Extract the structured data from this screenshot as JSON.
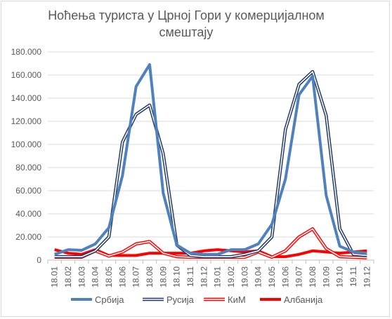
{
  "chart_data": {
    "type": "line",
    "title": "Ноћења туриста у Црној Гори у комерцијалном смештају",
    "xlabel": "",
    "ylabel": "",
    "ylim": [
      0,
      180000
    ],
    "yticks": [
      0,
      20000,
      40000,
      60000,
      80000,
      100000,
      120000,
      140000,
      160000,
      180000
    ],
    "ytick_labels": [
      "0",
      "20.000",
      "40.000",
      "60.000",
      "80.000",
      "100.000",
      "120.000",
      "140.000",
      "160.000",
      "180.000"
    ],
    "grid": true,
    "legend_position": "bottom",
    "categories": [
      "18.01",
      "18.02",
      "18.03",
      "18.04",
      "18.05",
      "18.06",
      "18.07",
      "18.08",
      "18.09",
      "18.10",
      "18.11",
      "18.12",
      "19.01",
      "19.02",
      "19.03",
      "19.04",
      "19.05",
      "19.06",
      "19.07",
      "19.08",
      "19.09",
      "19.10",
      "19.11",
      "19.12"
    ],
    "series": [
      {
        "name": "Србија",
        "color": "#4f81bd",
        "style": "solid-thick",
        "values": [
          5000,
          9000,
          8500,
          14000,
          28000,
          73000,
          150000,
          169000,
          58000,
          13000,
          6000,
          5000,
          5000,
          9000,
          9000,
          14000,
          31000,
          70000,
          143000,
          159000,
          56000,
          12000,
          7000,
          6000
        ]
      },
      {
        "name": "Русија",
        "color": "#1f3864",
        "style": "double",
        "values": [
          3000,
          3000,
          3000,
          8000,
          20000,
          102000,
          126000,
          134000,
          92000,
          13000,
          4000,
          3000,
          3000,
          3000,
          5000,
          8000,
          20000,
          113000,
          152000,
          163000,
          125000,
          27000,
          5000,
          4000
        ]
      },
      {
        "name": "КиМ",
        "color": "#ff0000",
        "style": "double",
        "values": [
          2500,
          2500,
          2500,
          8000,
          3500,
          7000,
          14000,
          16000,
          6000,
          3000,
          2500,
          2500,
          2500,
          2500,
          2500,
          7000,
          2500,
          8000,
          20000,
          27000,
          10000,
          3000,
          2500,
          2000
        ]
      },
      {
        "name": "Албанија",
        "color": "#ff0000",
        "style": "solid-thick",
        "values": [
          9000,
          6000,
          5000,
          9000,
          4000,
          4000,
          4000,
          6000,
          6000,
          6000,
          6000,
          8000,
          9000,
          8000,
          7000,
          8000,
          3000,
          3000,
          5000,
          8000,
          7000,
          6000,
          7000,
          8000
        ]
      }
    ]
  }
}
